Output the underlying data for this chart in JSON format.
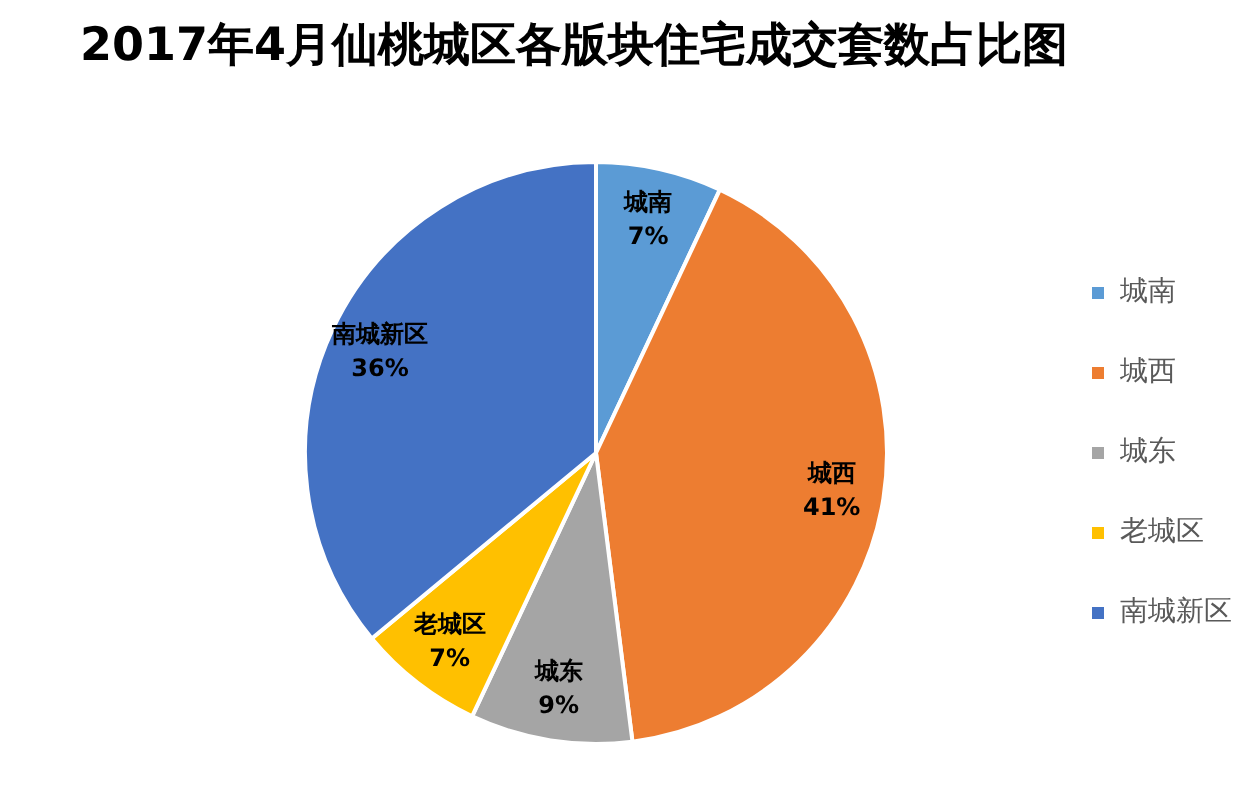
{
  "chart_data": {
    "type": "pie",
    "title": "2017年4月仙桃城区各版块住宅成交套数占比图",
    "categories": [
      "城南",
      "城西",
      "城东",
      "老城区",
      "南城新区"
    ],
    "values": [
      7,
      41,
      9,
      7,
      36
    ],
    "colors": [
      "#5b9bd5",
      "#ed7d31",
      "#a5a5a5",
      "#ffc000",
      "#4472c4"
    ],
    "value_labels": [
      "7%",
      "41%",
      "9%",
      "7%",
      "36%"
    ],
    "legend": "right"
  }
}
